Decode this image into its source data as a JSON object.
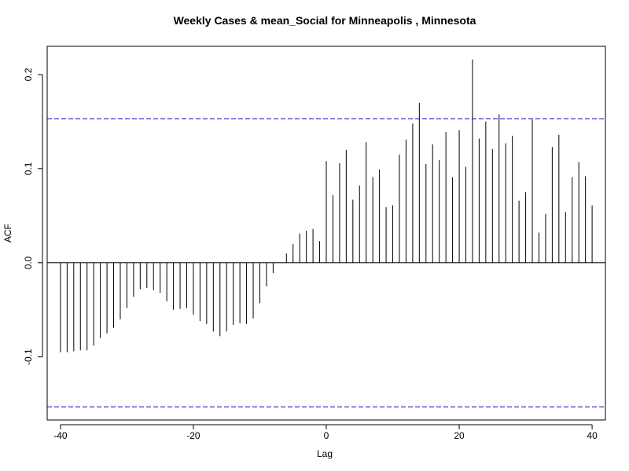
{
  "chart_data": {
    "type": "bar",
    "title": "Weekly Cases & mean_Social for Minneapolis , Minnesota",
    "xlabel": "Lag",
    "ylabel": "ACF",
    "xlim": [
      -42,
      42
    ],
    "ylim": [
      -0.167,
      0.23
    ],
    "x_ticks": [
      -40,
      -20,
      0,
      20,
      40
    ],
    "x_tick_labels": [
      "-40",
      "-20",
      "0",
      "20",
      "40"
    ],
    "y_ticks": [
      -0.1,
      0.0,
      0.1,
      0.2
    ],
    "y_tick_labels": [
      "-0.1",
      "0.0",
      "0.1",
      "0.2"
    ],
    "confidence_limit": 0.153,
    "grid": false,
    "colors": {
      "bars": "#000000",
      "confidence_lines": "#0000cc",
      "zero_line": "#000000"
    },
    "lags": [
      -40,
      -39,
      -38,
      -37,
      -36,
      -35,
      -34,
      -33,
      -32,
      -31,
      -30,
      -29,
      -28,
      -27,
      -26,
      -25,
      -24,
      -23,
      -22,
      -21,
      -20,
      -19,
      -18,
      -17,
      -16,
      -15,
      -14,
      -13,
      -12,
      -11,
      -10,
      -9,
      -8,
      -7,
      -6,
      -5,
      -4,
      -3,
      -2,
      -1,
      0,
      1,
      2,
      3,
      4,
      5,
      6,
      7,
      8,
      9,
      10,
      11,
      12,
      13,
      14,
      15,
      16,
      17,
      18,
      19,
      20,
      21,
      22,
      23,
      24,
      25,
      26,
      27,
      28,
      29,
      30,
      31,
      32,
      33,
      34,
      35,
      36,
      37,
      38,
      39,
      40
    ],
    "values": [
      -0.095,
      -0.095,
      -0.094,
      -0.093,
      -0.093,
      -0.088,
      -0.08,
      -0.075,
      -0.069,
      -0.06,
      -0.048,
      -0.036,
      -0.028,
      -0.027,
      -0.029,
      -0.032,
      -0.041,
      -0.05,
      -0.049,
      -0.048,
      -0.055,
      -0.062,
      -0.065,
      -0.073,
      -0.078,
      -0.073,
      -0.066,
      -0.064,
      -0.065,
      -0.059,
      -0.043,
      -0.025,
      -0.011,
      0.0,
      0.01,
      0.02,
      0.031,
      0.034,
      0.036,
      0.023,
      0.108,
      0.072,
      0.106,
      0.12,
      0.067,
      0.082,
      0.128,
      0.091,
      0.099,
      0.059,
      0.061,
      0.115,
      0.131,
      0.148,
      0.17,
      0.105,
      0.126,
      0.109,
      0.139,
      0.091,
      0.141,
      0.102,
      0.216,
      0.132,
      0.15,
      0.121,
      0.158,
      0.127,
      0.135,
      0.066,
      0.075,
      0.152,
      0.032,
      0.052,
      0.123,
      0.136,
      0.054,
      0.091,
      0.107,
      0.092,
      0.061
    ]
  }
}
